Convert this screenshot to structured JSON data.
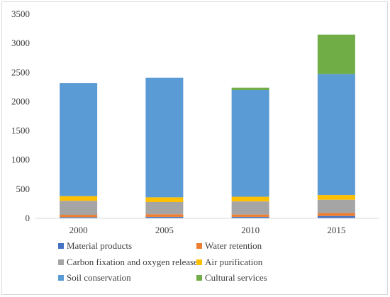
{
  "chart_data": {
    "type": "bar",
    "stacked": true,
    "title": "",
    "xlabel": "",
    "ylabel": "",
    "categories": [
      "2000",
      "2005",
      "2010",
      "2015"
    ],
    "ylim": [
      0,
      3500
    ],
    "yticks": [
      0,
      500,
      1000,
      1500,
      2000,
      2500,
      3000,
      3500
    ],
    "grid": false,
    "legend_position": "bottom",
    "series": [
      {
        "name": "Material products",
        "color": "#4472C4",
        "values": [
          20,
          25,
          25,
          40
        ]
      },
      {
        "name": "Water retention",
        "color": "#ED7D31",
        "values": [
          40,
          45,
          40,
          50
        ]
      },
      {
        "name": "Carbon fixation and oxygen release",
        "color": "#A5A5A5",
        "values": [
          240,
          210,
          225,
          230
        ]
      },
      {
        "name": "Air purification",
        "color": "#FFC000",
        "values": [
          80,
          80,
          80,
          80
        ]
      },
      {
        "name": "Soil conservation",
        "color": "#5B9BD5",
        "values": [
          1940,
          2050,
          1830,
          2075
        ]
      },
      {
        "name": "Cultural services",
        "color": "#70AD47",
        "values": [
          0,
          0,
          40,
          675
        ]
      }
    ]
  }
}
